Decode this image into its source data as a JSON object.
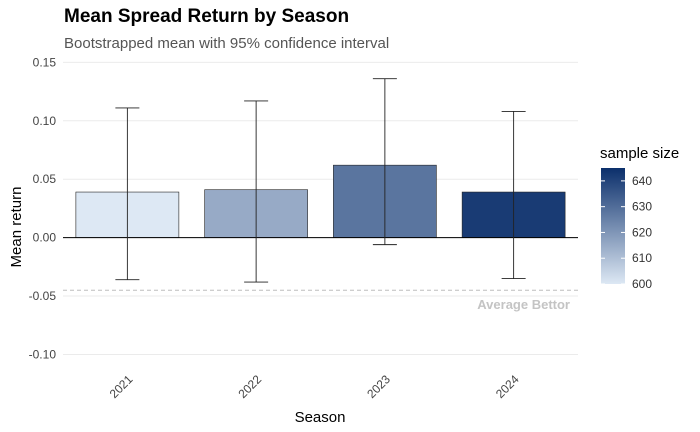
{
  "chart_data": {
    "type": "bar",
    "title": "Mean Spread Return by Season",
    "subtitle": "Bootstrapped mean with 95% confidence interval",
    "xlabel": "Season",
    "ylabel": "Mean return",
    "categories": [
      "2021",
      "2022",
      "2023",
      "2024"
    ],
    "values": [
      0.039,
      0.041,
      0.062,
      0.039
    ],
    "ci_lower": [
      -0.036,
      -0.038,
      -0.006,
      -0.035
    ],
    "ci_upper": [
      0.111,
      0.117,
      0.136,
      0.108
    ],
    "sample_size": [
      600,
      615,
      628,
      642
    ],
    "ylim": [
      -0.115,
      0.152
    ],
    "yticks": [
      0.15,
      0.1,
      0.05,
      0.0,
      -0.05,
      -0.1
    ],
    "ytick_labels": [
      "0.15",
      "0.10",
      "0.05",
      "0.00",
      "-0.05",
      "-0.10"
    ],
    "grid": true,
    "reference_line": {
      "value": -0.045,
      "label": "Average Bettor",
      "color": "#bdbdbd"
    },
    "legend": {
      "title": "sample size",
      "position": "right",
      "ticks": [
        640,
        630,
        620,
        610,
        600
      ],
      "range": [
        600,
        645
      ],
      "color_low": "#dde8f4",
      "color_high": "#0b2f6b"
    }
  }
}
